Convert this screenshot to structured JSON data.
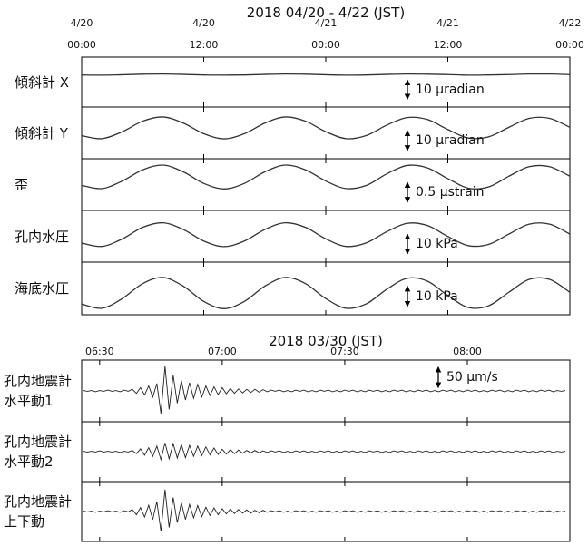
{
  "chart_data": [
    {
      "type": "line",
      "title": "2018 04/20 - 4/22 (JST)",
      "x": [
        0,
        2,
        4,
        6,
        8,
        10,
        12,
        14,
        16,
        18,
        20,
        22,
        24,
        26,
        28,
        30,
        32,
        34,
        36,
        38,
        40,
        42,
        44,
        46,
        48
      ],
      "xlim": [
        0,
        48
      ],
      "xticks": [
        {
          "value": 0,
          "label": "4/20\n00:00"
        },
        {
          "value": 12,
          "label": "4/20\n12:00"
        },
        {
          "value": 24,
          "label": "4/21\n00:00"
        },
        {
          "value": 36,
          "label": "4/21\n12:00"
        },
        {
          "value": 48,
          "label": "4/22\n00:00"
        }
      ],
      "color": "#333333",
      "series": [
        {
          "name": "傾斜計 X",
          "ylim": [
            -13,
            13
          ],
          "scale_bar": {
            "value": 10,
            "label": "10 μradian"
          },
          "values": [
            3.7,
            3.6,
            3.8,
            4.1,
            4.2,
            4.0,
            3.7,
            3.6,
            3.7,
            4.0,
            4.2,
            4.1,
            3.8,
            3.6,
            3.7,
            4.0,
            4.2,
            4.1,
            3.9,
            3.6,
            3.7,
            3.9,
            4.2,
            4.2,
            3.9
          ]
        },
        {
          "name": "傾斜計 Y",
          "ylim": [
            -13,
            13
          ],
          "scale_bar": {
            "value": 10,
            "label": "10 μradian"
          },
          "values": [
            -1.4,
            -2.9,
            0.6,
            5.9,
            8.0,
            4.9,
            -0.4,
            -3.0,
            -0.4,
            4.9,
            8.0,
            5.9,
            0.6,
            -2.9,
            -1.3,
            3.9,
            7.7,
            6.7,
            1.7,
            -2.6,
            -2.0,
            2.8,
            7.3,
            7.3,
            2.8
          ]
        },
        {
          "name": "歪",
          "ylim": [
            -0.65,
            0.65
          ],
          "scale_bar": {
            "value": 0.5,
            "label": "0.5 μstrain"
          },
          "values": [
            -0.02,
            -0.1,
            0.09,
            0.37,
            0.49,
            0.32,
            0.03,
            -0.11,
            0.03,
            0.32,
            0.49,
            0.37,
            0.09,
            -0.1,
            -0.02,
            0.27,
            0.48,
            0.42,
            0.15,
            -0.09,
            -0.06,
            0.21,
            0.45,
            0.45,
            0.21
          ]
        },
        {
          "name": "孔内水圧",
          "ylim": [
            -13,
            13
          ],
          "scale_bar": {
            "value": 10,
            "label": "10 kPa"
          },
          "values": [
            -3.4,
            -5.1,
            -1.3,
            4.5,
            6.8,
            3.4,
            -2.4,
            -5.2,
            -2.4,
            3.4,
            6.8,
            4.5,
            -1.3,
            -5.1,
            -3.3,
            2.3,
            6.5,
            5.4,
            -0.1,
            -4.7,
            -4.1,
            1.1,
            6.1,
            6.1,
            1.1
          ]
        },
        {
          "name": "海底水圧",
          "ylim": [
            -13,
            13
          ],
          "scale_bar": {
            "value": 10,
            "label": "10 kPa"
          },
          "values": [
            -7.7,
            -9.8,
            -5.0,
            2.4,
            5.4,
            1.1,
            -6.4,
            -10.0,
            -6.4,
            1.1,
            5.4,
            2.4,
            -5.0,
            -9.8,
            -7.6,
            -0.4,
            5.0,
            3.6,
            -3.5,
            -9.4,
            -8.6,
            -1.9,
            4.5,
            4.5,
            -1.9
          ]
        }
      ]
    },
    {
      "type": "line",
      "title": "2018 03/30 (JST)",
      "x": [
        26,
        27,
        28,
        29,
        30,
        31,
        32,
        33,
        34,
        35,
        36,
        37,
        38,
        39,
        40,
        41,
        42,
        43,
        44,
        45,
        46,
        47,
        48,
        49,
        50,
        51,
        52,
        53,
        54,
        55,
        56,
        57,
        58,
        59,
        60,
        61,
        62,
        63,
        64,
        65,
        66,
        67,
        68,
        69,
        70,
        71,
        72,
        73,
        74,
        75,
        76,
        77,
        78,
        79,
        80,
        81,
        82,
        83,
        84,
        85,
        86,
        87,
        88,
        89,
        90,
        91,
        92,
        93,
        94,
        95,
        96,
        97,
        98,
        99,
        100,
        101,
        102,
        103,
        104,
        105,
        106,
        107,
        108,
        109,
        110,
        111,
        112,
        113,
        114,
        115,
        116,
        117,
        118,
        119,
        120,
        121,
        122,
        123,
        124,
        125,
        126,
        127,
        128,
        129,
        130,
        131,
        132,
        133,
        134,
        135,
        136,
        137,
        138,
        139,
        140,
        141,
        142,
        143,
        144
      ],
      "xlim": [
        25.6,
        145.1
      ],
      "xticks": [
        {
          "value": 30,
          "label": "06:30"
        },
        {
          "value": 60,
          "label": "07:00"
        },
        {
          "value": 90,
          "label": "07:30"
        },
        {
          "value": 120,
          "label": "08:00"
        }
      ],
      "color": "#222222",
      "series": [
        {
          "name": "孔内地震計\n水平動1",
          "ylim": [
            -75,
            75
          ],
          "scale_bar": {
            "value": 50,
            "label": "50 μm/s"
          },
          "values": [
            1,
            -1,
            1,
            -2,
            1,
            -1,
            2,
            -1,
            1,
            -2,
            2,
            -1,
            4,
            -6,
            8,
            -10,
            12,
            -15,
            18,
            -55,
            60,
            -45,
            38,
            -30,
            25,
            -22,
            20,
            -18,
            16,
            -15,
            12,
            -11,
            10,
            -9,
            8,
            -7,
            6,
            -6,
            5,
            -5,
            4,
            -4,
            4,
            -3,
            3,
            -2,
            2,
            -1,
            2,
            -2,
            1,
            -2,
            2,
            -1,
            2,
            -2,
            1,
            -2,
            2,
            -1,
            2,
            -2,
            1,
            -2,
            2,
            -1,
            2,
            -2,
            1,
            -2,
            2,
            -1,
            2,
            -2,
            1,
            -2,
            2,
            -1,
            2,
            -2,
            1,
            -2,
            2,
            -1,
            2,
            -2,
            1,
            -2,
            2,
            -1,
            2,
            -2,
            1,
            -2,
            2,
            -1,
            2,
            -2,
            1,
            -2,
            2,
            -1,
            2,
            -2,
            1,
            -2,
            2,
            -1,
            2,
            -2,
            1,
            -2,
            2,
            -1,
            2,
            -2,
            1,
            -1,
            1
          ]
        },
        {
          "name": "孔内地震計\n水平動2",
          "ylim": [
            -75,
            75
          ],
          "values": [
            1,
            -1,
            1,
            -1,
            2,
            -1,
            1,
            -1,
            1,
            -2,
            1,
            -1,
            3,
            -5,
            7,
            -9,
            10,
            -12,
            14,
            -20,
            22,
            -18,
            20,
            -16,
            18,
            -15,
            16,
            -12,
            14,
            -10,
            12,
            -8,
            9,
            -7,
            6,
            -6,
            5,
            -5,
            4,
            -4,
            3,
            -3,
            3,
            -3,
            2,
            -2,
            2,
            -1,
            2,
            -2,
            1,
            -2,
            2,
            -1,
            2,
            -2,
            1,
            -2,
            2,
            -1,
            2,
            -2,
            1,
            -2,
            2,
            -1,
            2,
            -2,
            1,
            -2,
            2,
            -1,
            2,
            -2,
            1,
            -2,
            2,
            -1,
            2,
            -2,
            1,
            -2,
            2,
            -1,
            2,
            -2,
            1,
            -2,
            2,
            -1,
            2,
            -2,
            1,
            -2,
            2,
            -1,
            2,
            -2,
            1,
            -2,
            2,
            -1,
            2,
            -2,
            1,
            -2,
            2,
            -1,
            2,
            -2,
            1,
            -2,
            2,
            -1,
            2,
            -2,
            1,
            -1,
            1
          ]
        },
        {
          "name": "孔内地震計\n上下動",
          "ylim": [
            -75,
            75
          ],
          "values": [
            1,
            -1,
            1,
            -2,
            1,
            -1,
            2,
            -1,
            1,
            -2,
            2,
            -1,
            5,
            -8,
            10,
            -14,
            16,
            -20,
            25,
            -50,
            55,
            -40,
            35,
            -28,
            22,
            -20,
            18,
            -16,
            15,
            -13,
            11,
            -10,
            9,
            -8,
            7,
            -6,
            6,
            -5,
            5,
            -4,
            4,
            -4,
            3,
            -3,
            3,
            -2,
            2,
            -1,
            2,
            -2,
            1,
            -2,
            2,
            -1,
            2,
            -2,
            1,
            -2,
            2,
            -1,
            2,
            -2,
            1,
            -2,
            2,
            -1,
            2,
            -2,
            1,
            -2,
            2,
            -1,
            2,
            -2,
            1,
            -2,
            2,
            -1,
            2,
            -2,
            1,
            -2,
            2,
            -1,
            2,
            -2,
            1,
            -2,
            2,
            -1,
            2,
            -2,
            1,
            -2,
            2,
            -1,
            2,
            -2,
            1,
            -2,
            2,
            -1,
            2,
            -2,
            1,
            -2,
            2,
            -1,
            2,
            -2,
            1,
            -2,
            2,
            -1,
            2,
            -2,
            1,
            -1,
            1
          ]
        }
      ]
    }
  ]
}
